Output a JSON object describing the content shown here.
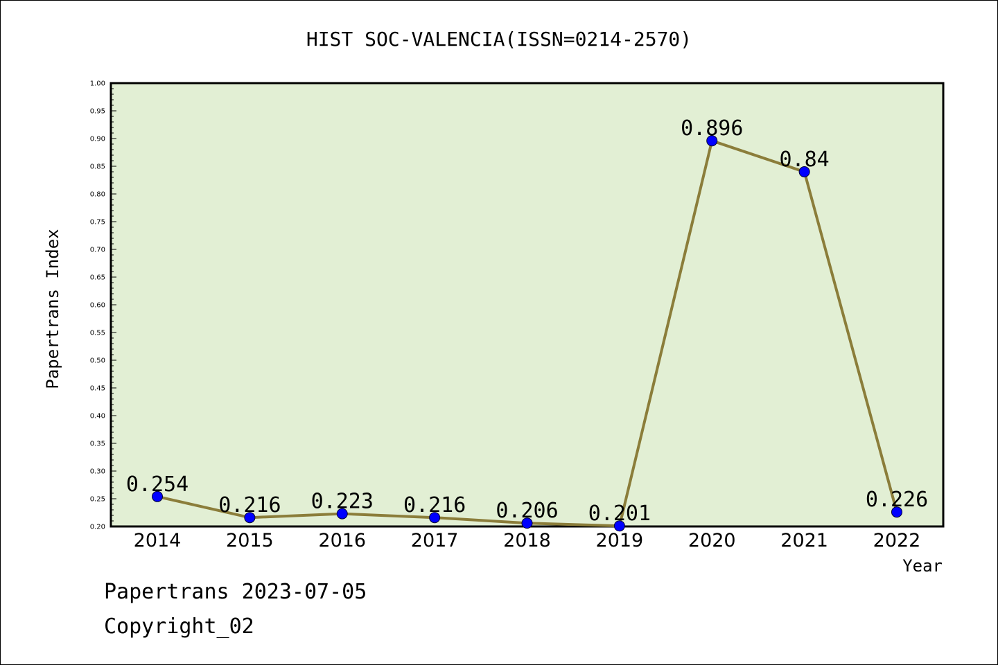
{
  "footer": {
    "line1": "Papertrans 2023-07-05",
    "line2": "Copyright_02"
  },
  "chart_data": {
    "type": "line",
    "title": "HIST SOC-VALENCIA(ISSN=0214-2570)",
    "xlabel": "Year",
    "ylabel": "Papertrans Index",
    "categories": [
      "2014",
      "2015",
      "2016",
      "2017",
      "2018",
      "2019",
      "2020",
      "2021",
      "2022"
    ],
    "series": [
      {
        "values": [
          0.254,
          0.216,
          0.223,
          0.216,
          0.206,
          0.201,
          0.896,
          0.84,
          0.226
        ],
        "labels": [
          "0.254",
          "0.216",
          "0.223",
          "0.216",
          "0.206",
          "0.201",
          "0.896",
          "0.84",
          "0.226"
        ],
        "line_color": "#8b7d3a",
        "marker_color": "#0000ff"
      }
    ],
    "ylim": [
      0.2,
      1.0
    ],
    "yticks": [
      "0.20",
      "0.25",
      "0.30",
      "0.35",
      "0.40",
      "0.45",
      "0.50",
      "0.55",
      "0.60",
      "0.65",
      "0.70",
      "0.75",
      "0.80",
      "0.85",
      "0.90",
      "0.95",
      "1.00"
    ],
    "plot_background": "#e2efd4",
    "grid": false,
    "legend": "none"
  }
}
